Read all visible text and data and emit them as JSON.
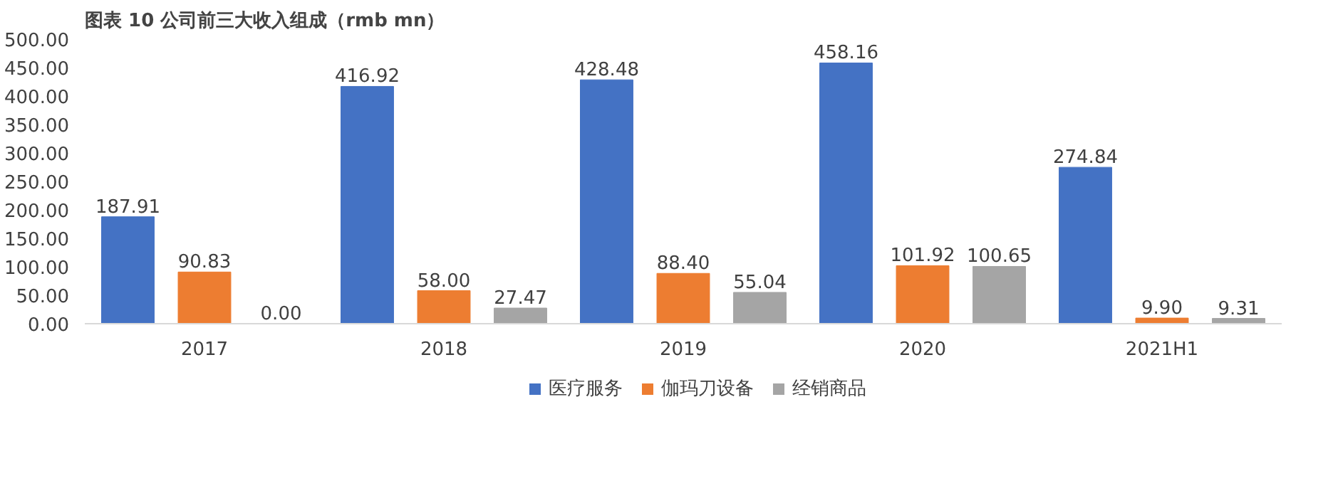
{
  "chart_data": {
    "type": "bar",
    "title": "图表 10 公司前三大收入组成（rmb mn）",
    "categories": [
      "2017",
      "2018",
      "2019",
      "2020",
      "2021H1"
    ],
    "series": [
      {
        "name": "医疗服务",
        "color": "#4472c4",
        "values": [
          187.91,
          416.92,
          428.48,
          458.16,
          274.84
        ],
        "value_labels": [
          "187.91",
          "416.92",
          "428.48",
          "458.16",
          "274.84"
        ]
      },
      {
        "name": "伽玛刀设备",
        "color": "#ed7d31",
        "values": [
          90.83,
          58.0,
          88.4,
          101.92,
          9.9
        ],
        "value_labels": [
          "90.83",
          "58.00",
          "88.40",
          "101.92",
          "9.90"
        ]
      },
      {
        "name": "经销商品",
        "color": "#a5a5a5",
        "values": [
          0.0,
          27.47,
          55.04,
          100.65,
          9.31
        ],
        "value_labels": [
          "0.00",
          "27.47",
          "55.04",
          "100.65",
          "9.31"
        ]
      }
    ],
    "ylim": [
      0,
      500
    ],
    "yticks": [
      {
        "value": 0,
        "label": "0.00"
      },
      {
        "value": 50,
        "label": "50.00"
      },
      {
        "value": 100,
        "label": "100.00"
      },
      {
        "value": 150,
        "label": "150.00"
      },
      {
        "value": 200,
        "label": "200.00"
      },
      {
        "value": 250,
        "label": "250.00"
      },
      {
        "value": 300,
        "label": "300.00"
      },
      {
        "value": 350,
        "label": "350.00"
      },
      {
        "value": 400,
        "label": "400.00"
      },
      {
        "value": 450,
        "label": "450.00"
      },
      {
        "value": 500,
        "label": "500.00"
      }
    ],
    "grid": false,
    "legend": "bottom"
  }
}
